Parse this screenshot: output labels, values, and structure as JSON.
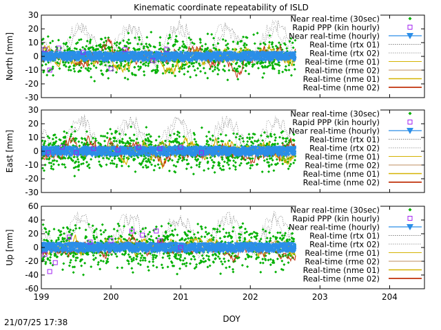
{
  "title": "Kinematic coordinate repeatability of ISLD",
  "timestamp": "21/07/25 17:38",
  "colors": {
    "nrt30": "#00b000",
    "ppp": "#a020f0",
    "nrtHourly": "#2b8ee8",
    "rtx01": "#808080",
    "rtx02": "#a0a0a0",
    "rme01": "#d4b200",
    "rme02": "#a8682a",
    "nme01": "#d4b200",
    "nme02": "#c0300a"
  },
  "chart_data": [
    {
      "type": "scatter",
      "ylabel": "North [mm]",
      "xlabel": "",
      "xlim": [
        199,
        204.5
      ],
      "ylim": [
        -30,
        30
      ],
      "xticks": [],
      "yticks": [
        "-30",
        "-20",
        "-10",
        "0",
        "10",
        "20",
        "30"
      ],
      "legend": [
        "Near real-time (30sec)",
        "Rapid PPP (kin hourly)",
        "Near real-time (hourly)",
        "Real-time (rtx 01)",
        "Real-time (rtx 02)",
        "Real-time (rme 01)",
        "Real-time (rme 02)",
        "Real-time (nme 01)",
        "Real-time (nme 02)"
      ],
      "legend_placement": "top-right",
      "series_span": [
        199,
        202.65
      ],
      "nrt30_spread": 9,
      "hourly_spread": 3,
      "ppp": [
        [
          199.05,
          5
        ],
        [
          199.12,
          -10
        ],
        [
          199.25,
          6
        ],
        [
          199.6,
          3
        ],
        [
          200.0,
          -9
        ],
        [
          200.2,
          5
        ],
        [
          200.6,
          -3
        ],
        [
          200.8,
          5
        ]
      ],
      "rtx_range": [
        -5,
        30
      ],
      "rme_amplitude": 12
    },
    {
      "type": "scatter",
      "ylabel": "East [mm]",
      "xlabel": "",
      "xlim": [
        199,
        204.5
      ],
      "ylim": [
        -30,
        30
      ],
      "xticks": [],
      "yticks": [
        "-30",
        "-20",
        "-10",
        "0",
        "10",
        "20",
        "30"
      ],
      "legend": [
        "Near real-time (30sec)",
        "Rapid PPP (kin hourly)",
        "Near real-time (hourly)",
        "Real-time (rtx 01)",
        "Real-time (rtx 02)",
        "Real-time (rme 01)",
        "Real-time (rme 02)",
        "Real-time (nme 01)",
        "Real-time (nme 02)"
      ],
      "legend_placement": "top-right",
      "series_span": [
        199,
        202.65
      ],
      "nrt30_spread": 9,
      "hourly_spread": 3,
      "ppp": [
        [
          199.1,
          -1
        ],
        [
          199.3,
          3
        ],
        [
          199.5,
          -1
        ],
        [
          199.75,
          2
        ],
        [
          200.1,
          1
        ],
        [
          200.4,
          3
        ],
        [
          200.7,
          2
        ],
        [
          201.0,
          3
        ],
        [
          201.3,
          -1
        ]
      ],
      "rtx_range": [
        -5,
        30
      ],
      "rme_amplitude": 12
    },
    {
      "type": "scatter",
      "ylabel": "Up [mm]",
      "xlabel": "DOY",
      "xlim": [
        199,
        204.5
      ],
      "ylim": [
        -60,
        60
      ],
      "xticks": [
        "199",
        "200",
        "201",
        "202",
        "203",
        "204"
      ],
      "yticks": [
        "-60",
        "-40",
        "-20",
        "0",
        "20",
        "40",
        "60"
      ],
      "legend": [
        "Near real-time (30sec)",
        "Rapid PPP (kin hourly)",
        "Near real-time (hourly)",
        "Real-time (rtx 01)",
        "Real-time (rtx 02)",
        "Real-time (rme 01)",
        "Real-time (rme 02)",
        "Real-time (nme 01)",
        "Real-time (nme 02)"
      ],
      "legend_placement": "top-right",
      "series_span": [
        199,
        202.65
      ],
      "nrt30_spread": 20,
      "hourly_spread": 6,
      "ppp": [
        [
          199.05,
          -10
        ],
        [
          199.12,
          -35
        ],
        [
          199.2,
          -22
        ],
        [
          199.4,
          15
        ],
        [
          199.7,
          8
        ],
        [
          200.0,
          10
        ],
        [
          200.3,
          24
        ],
        [
          200.45,
          18
        ],
        [
          200.65,
          24
        ],
        [
          200.7,
          10
        ],
        [
          201.0,
          0
        ]
      ],
      "rtx_range": [
        -10,
        60
      ],
      "rme_amplitude": 20
    }
  ]
}
